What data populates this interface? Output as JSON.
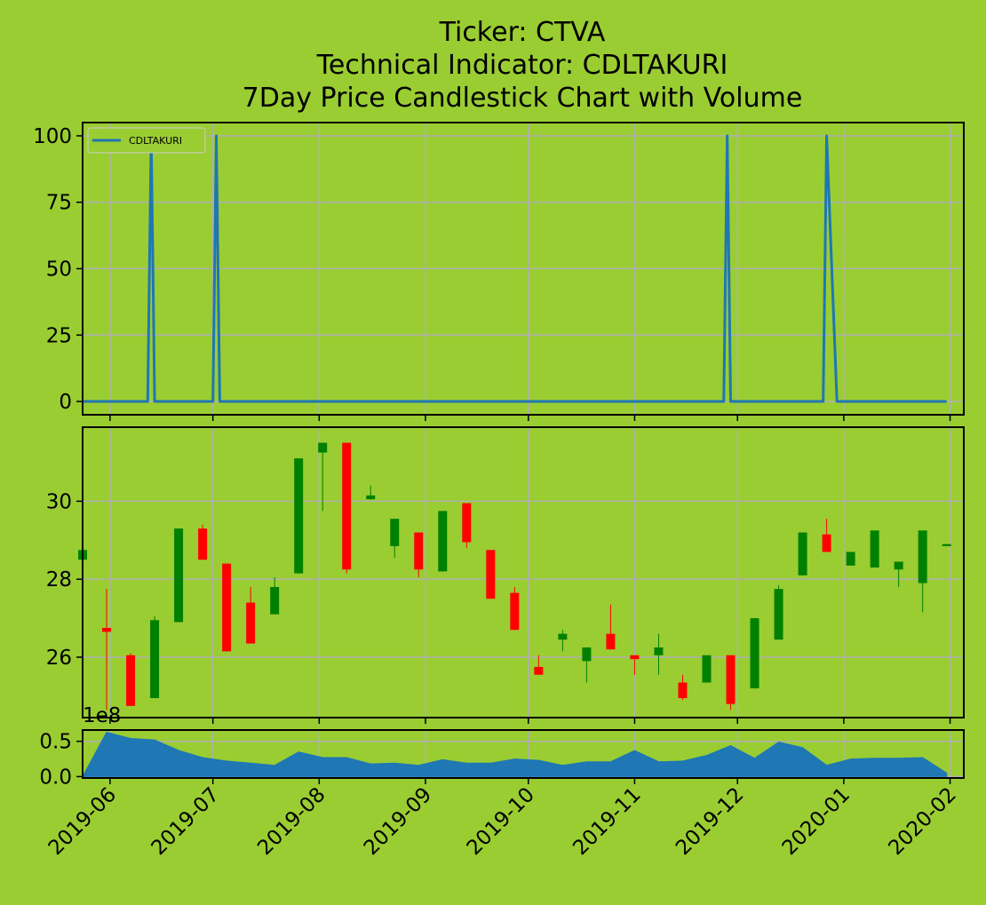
{
  "title_lines": [
    "Ticker: CTVA",
    "Technical Indicator: CDLTAKURI",
    "7Day Price Candlestick Chart with Volume"
  ],
  "colors": {
    "background": "#9acd32",
    "indicator_line": "#1f77b4",
    "volume_fill": "#1f77b4",
    "candle_up": "#008000",
    "candle_down": "#ff0000",
    "grid": "#b0b0b0"
  },
  "chart_data": [
    {
      "panel": "indicator",
      "type": "line",
      "legend": {
        "label": "CDLTAKURI",
        "placement": "upper-left"
      },
      "ylim": [
        -5,
        105
      ],
      "yticks": [
        0,
        25,
        50,
        75,
        100
      ],
      "xlim": [
        "2019-05-24",
        "2020-02-05"
      ],
      "grid": true,
      "series": [
        {
          "name": "CDLTAKURI",
          "x": [
            "2019-05-24",
            "2019-06-12",
            "2019-06-13",
            "2019-06-14",
            "2019-07-01",
            "2019-07-02",
            "2019-07-03",
            "2019-11-27",
            "2019-11-28",
            "2019-11-29",
            "2019-12-26",
            "2019-12-27",
            "2019-12-30",
            "2020-01-31"
          ],
          "values": [
            0,
            0,
            100,
            0,
            0,
            100,
            0,
            0,
            100,
            0,
            0,
            100,
            0,
            0
          ]
        }
      ]
    },
    {
      "panel": "price",
      "type": "candlestick",
      "ylim": [
        24.45,
        31.9
      ],
      "yticks": [
        26,
        28,
        30
      ],
      "grid": true,
      "candles": [
        {
          "date": "2019-05-24",
          "open": 28.5,
          "high": 28.75,
          "low": 28.2,
          "close": 28.75
        },
        {
          "date": "2019-05-31",
          "open": 26.75,
          "high": 27.75,
          "low": 24.65,
          "close": 26.65
        },
        {
          "date": "2019-06-07",
          "open": 26.05,
          "high": 26.1,
          "low": 24.75,
          "close": 24.75
        },
        {
          "date": "2019-06-14",
          "open": 24.95,
          "high": 27.05,
          "low": 24.95,
          "close": 26.95
        },
        {
          "date": "2019-06-21",
          "open": 26.9,
          "high": 29.3,
          "low": 26.9,
          "close": 29.3
        },
        {
          "date": "2019-06-28",
          "open": 29.3,
          "high": 29.4,
          "low": 28.5,
          "close": 28.5
        },
        {
          "date": "2019-07-05",
          "open": 28.4,
          "high": 28.4,
          "low": 26.15,
          "close": 26.15
        },
        {
          "date": "2019-07-12",
          "open": 27.4,
          "high": 27.8,
          "low": 26.35,
          "close": 26.35
        },
        {
          "date": "2019-07-19",
          "open": 27.1,
          "high": 28.05,
          "low": 27.1,
          "close": 27.8
        },
        {
          "date": "2019-07-26",
          "open": 28.15,
          "high": 31.1,
          "low": 28.15,
          "close": 31.1
        },
        {
          "date": "2019-08-02",
          "open": 31.25,
          "high": 31.5,
          "low": 29.75,
          "close": 31.5
        },
        {
          "date": "2019-08-09",
          "open": 31.5,
          "high": 31.5,
          "low": 28.15,
          "close": 28.25
        },
        {
          "date": "2019-08-16",
          "open": 30.05,
          "high": 30.4,
          "low": 30.05,
          "close": 30.15
        },
        {
          "date": "2019-08-23",
          "open": 28.85,
          "high": 29.55,
          "low": 28.55,
          "close": 29.55
        },
        {
          "date": "2019-08-30",
          "open": 29.2,
          "high": 29.2,
          "low": 28.05,
          "close": 28.25
        },
        {
          "date": "2019-09-06",
          "open": 28.2,
          "high": 29.75,
          "low": 28.2,
          "close": 29.75
        },
        {
          "date": "2019-09-13",
          "open": 29.95,
          "high": 29.95,
          "low": 28.8,
          "close": 28.95
        },
        {
          "date": "2019-09-20",
          "open": 28.75,
          "high": 28.75,
          "low": 27.5,
          "close": 27.5
        },
        {
          "date": "2019-09-27",
          "open": 27.65,
          "high": 27.8,
          "low": 26.7,
          "close": 26.7
        },
        {
          "date": "2019-10-04",
          "open": 25.75,
          "high": 26.05,
          "low": 25.55,
          "close": 25.55
        },
        {
          "date": "2019-10-11",
          "open": 26.45,
          "high": 26.7,
          "low": 26.15,
          "close": 26.6
        },
        {
          "date": "2019-10-18",
          "open": 25.9,
          "high": 26.25,
          "low": 25.35,
          "close": 26.25
        },
        {
          "date": "2019-10-25",
          "open": 26.6,
          "high": 27.35,
          "low": 26.2,
          "close": 26.2
        },
        {
          "date": "2019-11-01",
          "open": 26.05,
          "high": 26.05,
          "low": 25.55,
          "close": 25.95
        },
        {
          "date": "2019-11-08",
          "open": 26.05,
          "high": 26.6,
          "low": 25.55,
          "close": 26.25
        },
        {
          "date": "2019-11-15",
          "open": 25.35,
          "high": 25.55,
          "low": 24.9,
          "close": 24.95
        },
        {
          "date": "2019-11-22",
          "open": 25.35,
          "high": 26.05,
          "low": 25.35,
          "close": 26.05
        },
        {
          "date": "2019-11-29",
          "open": 26.05,
          "high": 26.05,
          "low": 24.65,
          "close": 24.8
        },
        {
          "date": "2019-12-06",
          "open": 25.2,
          "high": 27.0,
          "low": 25.2,
          "close": 27.0
        },
        {
          "date": "2019-12-13",
          "open": 26.45,
          "high": 27.85,
          "low": 26.45,
          "close": 27.75
        },
        {
          "date": "2019-12-20",
          "open": 28.1,
          "high": 29.2,
          "low": 28.1,
          "close": 29.2
        },
        {
          "date": "2019-12-27",
          "open": 29.15,
          "high": 29.55,
          "low": 28.7,
          "close": 28.7
        },
        {
          "date": "2020-01-03",
          "open": 28.35,
          "high": 28.7,
          "low": 28.35,
          "close": 28.7
        },
        {
          "date": "2020-01-10",
          "open": 28.3,
          "high": 29.25,
          "low": 28.3,
          "close": 29.25
        },
        {
          "date": "2020-01-17",
          "open": 28.25,
          "high": 28.45,
          "low": 27.8,
          "close": 28.45
        },
        {
          "date": "2020-01-24",
          "open": 27.9,
          "high": 29.25,
          "low": 27.15,
          "close": 29.25
        },
        {
          "date": "2020-01-31",
          "open": 28.85,
          "high": 28.9,
          "low": 28.85,
          "close": 28.9
        }
      ]
    },
    {
      "panel": "volume",
      "type": "area",
      "multiplier_label": "1e8",
      "ylim": [
        -0.02,
        0.66
      ],
      "yticks": [
        0.0,
        0.5
      ],
      "ytick_labels": [
        "0.0",
        "0.5"
      ],
      "grid": true,
      "x": [
        "2019-05-24",
        "2019-05-31",
        "2019-06-07",
        "2019-06-14",
        "2019-06-21",
        "2019-06-28",
        "2019-07-05",
        "2019-07-12",
        "2019-07-19",
        "2019-07-26",
        "2019-08-02",
        "2019-08-09",
        "2019-08-16",
        "2019-08-23",
        "2019-08-30",
        "2019-09-06",
        "2019-09-13",
        "2019-09-20",
        "2019-09-27",
        "2019-10-04",
        "2019-10-11",
        "2019-10-18",
        "2019-10-25",
        "2019-11-01",
        "2019-11-08",
        "2019-11-15",
        "2019-11-22",
        "2019-11-29",
        "2019-12-06",
        "2019-12-13",
        "2019-12-20",
        "2019-12-27",
        "2020-01-03",
        "2020-01-10",
        "2020-01-17",
        "2020-01-24",
        "2020-01-31"
      ],
      "values": [
        0.0,
        0.63,
        0.54,
        0.52,
        0.37,
        0.27,
        0.22,
        0.19,
        0.16,
        0.35,
        0.27,
        0.27,
        0.18,
        0.19,
        0.16,
        0.24,
        0.19,
        0.19,
        0.25,
        0.23,
        0.16,
        0.21,
        0.21,
        0.37,
        0.21,
        0.22,
        0.3,
        0.44,
        0.26,
        0.49,
        0.41,
        0.16,
        0.25,
        0.26,
        0.26,
        0.27,
        0.05
      ],
      "xticks": [
        "2019-06-01",
        "2019-07-01",
        "2019-08-01",
        "2019-09-01",
        "2019-10-01",
        "2019-11-01",
        "2019-12-01",
        "2020-01-01",
        "2020-02-01"
      ],
      "xtick_labels": [
        "2019-06",
        "2019-07",
        "2019-08",
        "2019-09",
        "2019-10",
        "2019-11",
        "2019-12",
        "2020-01",
        "2020-02"
      ]
    }
  ]
}
